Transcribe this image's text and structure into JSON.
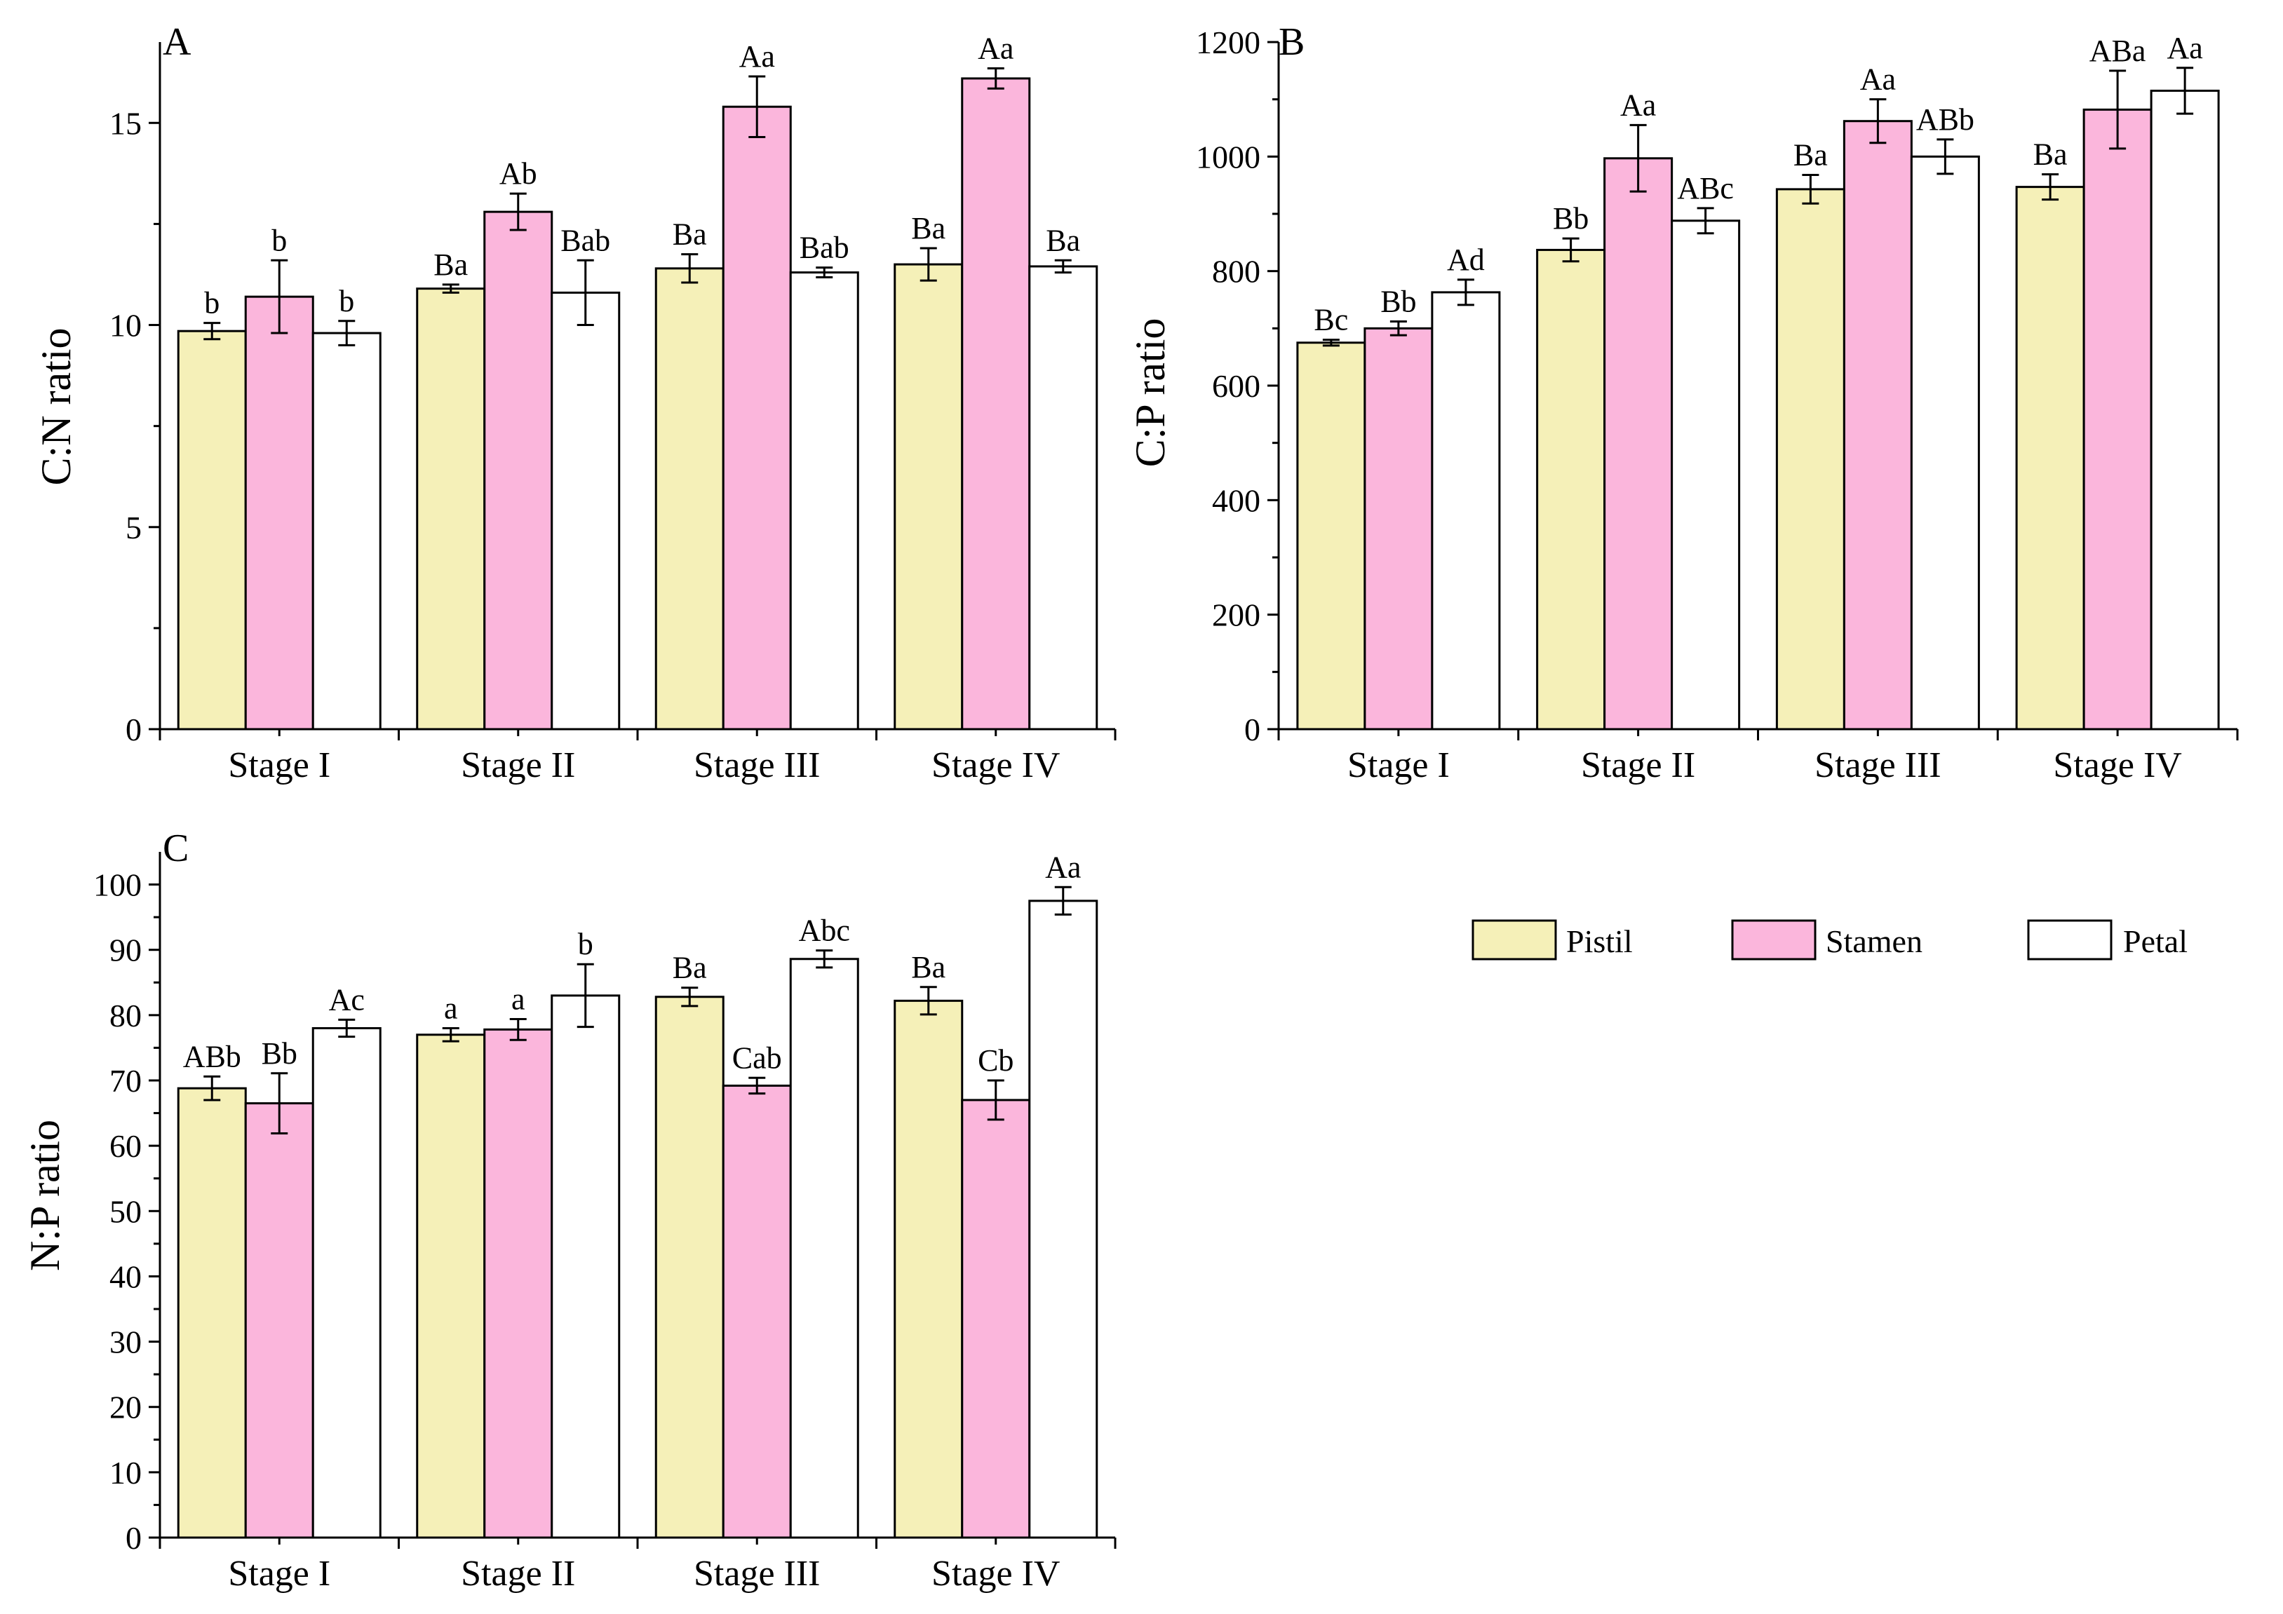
{
  "figure": {
    "legend": [
      {
        "name": "Pistil",
        "color": "#f5f0b8"
      },
      {
        "name": "Stamen",
        "color": "#fbb6dc"
      },
      {
        "name": "Petal",
        "color": "#ffffff"
      }
    ]
  },
  "chart_data": [
    {
      "panel": "A",
      "type": "bar",
      "ylabel": "C:N ratio",
      "xlabel": "",
      "ylim": [
        0,
        17
      ],
      "yticks": [
        0,
        5,
        10,
        15
      ],
      "categories": [
        "Stage I",
        "Stage II",
        "Stage III",
        "Stage IV"
      ],
      "series": [
        {
          "name": "Pistil",
          "values": [
            9.85,
            10.9,
            11.4,
            11.5
          ],
          "errors": [
            0.2,
            0.1,
            0.35,
            0.4
          ],
          "labels": [
            "b",
            "Ba",
            "Ba",
            "Ba"
          ]
        },
        {
          "name": "Stamen",
          "values": [
            10.7,
            12.8,
            15.4,
            16.1
          ],
          "errors": [
            0.9,
            0.45,
            0.75,
            0.25
          ],
          "labels": [
            "b",
            "Ab",
            "Aa",
            "Aa"
          ]
        },
        {
          "name": "Petal",
          "values": [
            9.8,
            10.8,
            11.3,
            11.45
          ],
          "errors": [
            0.3,
            0.8,
            0.12,
            0.15
          ],
          "labels": [
            "b",
            "Bab",
            "Bab",
            "Ba"
          ]
        }
      ]
    },
    {
      "panel": "B",
      "type": "bar",
      "ylabel": "C:P ratio",
      "xlabel": "",
      "ylim": [
        0,
        1200
      ],
      "yticks": [
        0,
        200,
        400,
        600,
        800,
        1000,
        1200
      ],
      "categories": [
        "Stage I",
        "Stage II",
        "Stage III",
        "Stage IV"
      ],
      "series": [
        {
          "name": "Pistil",
          "values": [
            675,
            837,
            943,
            947
          ],
          "errors": [
            5,
            20,
            25,
            22
          ],
          "labels": [
            "Bc",
            "Bb",
            "Ba",
            "Ba"
          ]
        },
        {
          "name": "Stamen",
          "values": [
            700,
            997,
            1062,
            1082
          ],
          "errors": [
            12,
            58,
            38,
            68
          ],
          "labels": [
            "Bb",
            "Aa",
            "Aa",
            "ABa"
          ]
        },
        {
          "name": "Petal",
          "values": [
            763,
            888,
            1000,
            1115
          ],
          "errors": [
            22,
            22,
            30,
            40
          ],
          "labels": [
            "Ad",
            "ABc",
            "ABb",
            "Aa"
          ]
        }
      ]
    },
    {
      "panel": "C",
      "type": "bar",
      "ylabel": "N:P ratio",
      "xlabel": "",
      "ylim": [
        0,
        105
      ],
      "yticks": [
        0,
        10,
        20,
        30,
        40,
        50,
        60,
        70,
        80,
        90,
        100
      ],
      "categories": [
        "Stage I",
        "Stage II",
        "Stage III",
        "Stage IV"
      ],
      "series": [
        {
          "name": "Pistil",
          "values": [
            68.8,
            77,
            82.8,
            82.2
          ],
          "errors": [
            1.8,
            1,
            1.4,
            2.1
          ],
          "labels": [
            "ABb",
            "a",
            "Ba",
            "Ba"
          ]
        },
        {
          "name": "Stamen",
          "values": [
            66.5,
            77.8,
            69.2,
            67
          ],
          "errors": [
            4.6,
            1.6,
            1.2,
            3
          ],
          "labels": [
            "Bb",
            "a",
            "Cab",
            "Cb"
          ]
        },
        {
          "name": "Petal",
          "values": [
            78,
            83,
            88.6,
            97.5
          ],
          "errors": [
            1.3,
            4.8,
            1.3,
            2.1
          ],
          "labels": [
            "Ac",
            "b",
            "Abc",
            "Aa"
          ]
        }
      ]
    }
  ]
}
